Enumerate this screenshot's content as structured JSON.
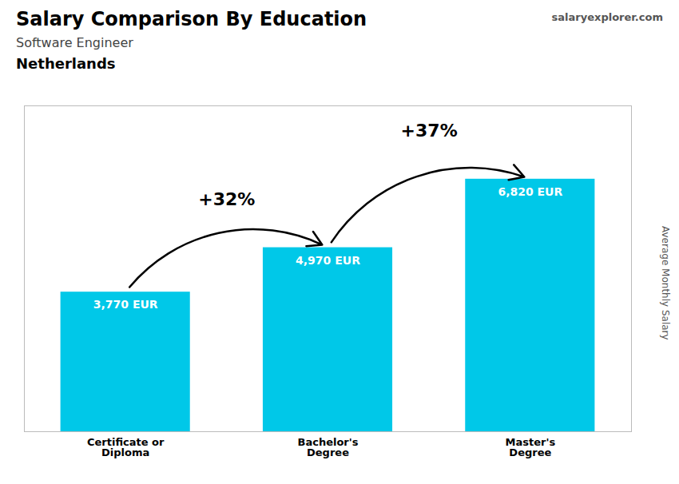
{
  "chart_data": {
    "type": "bar",
    "title": "Salary Comparison By Education",
    "subtitle": "Software Engineer",
    "country": "Netherlands",
    "source": "salaryexplorer.com",
    "ylabel": "Average Monthly Salary",
    "categories": [
      "Certificate or\nDiploma",
      "Bachelor's\nDegree",
      "Master's\nDegree"
    ],
    "values": [
      3770,
      4970,
      6820
    ],
    "value_labels": [
      "3,770 EUR",
      "4,970 EUR",
      "6,820 EUR"
    ],
    "data_labels": true,
    "annotations": [
      "+32%",
      "+37%"
    ],
    "color": "#00c8e8",
    "ylim": [
      0,
      8800
    ],
    "tick_labels": "x"
  }
}
